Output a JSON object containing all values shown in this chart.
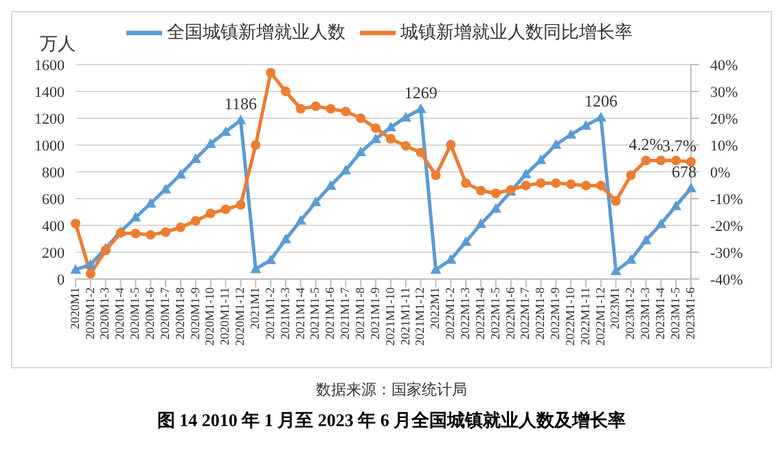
{
  "chart_data": {
    "type": "line",
    "title": "图 14 2010 年 1 月至 2023 年 6 月全国城镇就业人数及增长率",
    "ylabel": "万人",
    "annotations": [
      "数据来源：国家统计局"
    ],
    "categories": [
      "2020M1",
      "2020M1-2",
      "2020M1-3",
      "2020M1-4",
      "2020M1-5",
      "2020M1-6",
      "2020M1-7",
      "2020M1-8",
      "2020M1-9",
      "2020M1-10",
      "2020M1-11",
      "2020M1-12",
      "2021M1",
      "2021M1-2",
      "2021M1-3",
      "2021M1-4",
      "2021M1-5",
      "2021M1-6",
      "2021M1-7",
      "2021M1-8",
      "2021M1-9",
      "2021M1-10",
      "2021M1-11",
      "2021M1-12",
      "2022M1",
      "2022M1-2",
      "2022M1-3",
      "2022M1-4",
      "2022M1-5",
      "2022M1-6",
      "2022M1-7",
      "2022M1-8",
      "2022M1-9",
      "2022M1-10",
      "2022M1-11",
      "2022M1-12",
      "2023M1",
      "2023M1-2",
      "2023M1-3",
      "2023M1-4",
      "2023M1-5",
      "2023M1-6"
    ],
    "series": [
      {
        "name": "全国城镇新增就业人数",
        "color": "#5b9bd5",
        "marker": "triangle",
        "values": [
          70,
          108,
          229,
          354,
          460,
          564,
          671,
          781,
          898,
          1009,
          1099,
          1186,
          75,
          142,
          297,
          437,
          574,
          698,
          812,
          947,
          1045,
          1133,
          1207,
          1269,
          70,
          145,
          278,
          411,
          526,
          654,
          783,
          888,
          1002,
          1078,
          1145,
          1206,
          60,
          145,
          290,
          411,
          545,
          678
        ],
        "value_labels": [
          null,
          null,
          null,
          null,
          null,
          null,
          null,
          null,
          null,
          null,
          null,
          "1186",
          null,
          null,
          null,
          null,
          null,
          null,
          null,
          null,
          null,
          null,
          null,
          "1269",
          null,
          null,
          null,
          null,
          null,
          null,
          null,
          null,
          null,
          null,
          null,
          "1206",
          null,
          null,
          null,
          null,
          null,
          "678"
        ]
      },
      {
        "name": "城镇新增就业人数同比增长率",
        "color": "#ed7d31",
        "marker": "circle",
        "axis": "y2",
        "values": [
          -19.3,
          -38,
          -29.3,
          -22.8,
          -23,
          -23.5,
          -22.5,
          -20.7,
          -18.3,
          -15.5,
          -14,
          -12.3,
          10,
          37,
          30,
          23.5,
          24.5,
          23.5,
          22.5,
          20,
          16.3,
          12.3,
          9.7,
          7.2,
          -1.3,
          10.1,
          -4.2,
          -7,
          -8,
          -6.7,
          -5.1,
          -4.2,
          -4.2,
          -4.6,
          -5.1,
          -5.1,
          -10.9,
          -1.3,
          4.2,
          4.2,
          4.2,
          3.7
        ],
        "value_labels": [
          null,
          null,
          null,
          null,
          null,
          null,
          null,
          null,
          null,
          null,
          null,
          null,
          null,
          null,
          null,
          null,
          null,
          null,
          null,
          null,
          null,
          null,
          null,
          null,
          null,
          null,
          null,
          null,
          null,
          null,
          null,
          null,
          null,
          null,
          null,
          null,
          null,
          null,
          "4.2%",
          null,
          null,
          "3.7%"
        ]
      }
    ],
    "ylim": [
      0,
      1600
    ],
    "yticks": [
      0,
      200,
      400,
      600,
      800,
      1000,
      1200,
      1400,
      1600
    ],
    "y2lim": [
      -40,
      40
    ],
    "y2ticks": [
      {
        "value": -40,
        "label": "-40%"
      },
      {
        "value": -30,
        "label": "-30%"
      },
      {
        "value": -20,
        "label": "-20%"
      },
      {
        "value": -10,
        "label": "-10%"
      },
      {
        "value": 0,
        "label": "0%"
      },
      {
        "value": 10,
        "label": "10%"
      },
      {
        "value": 20,
        "label": "20%"
      },
      {
        "value": 30,
        "label": "30%"
      },
      {
        "value": 40,
        "label": "40%"
      }
    ],
    "grid": "y",
    "legend": "top",
    "line_style": "solid"
  }
}
